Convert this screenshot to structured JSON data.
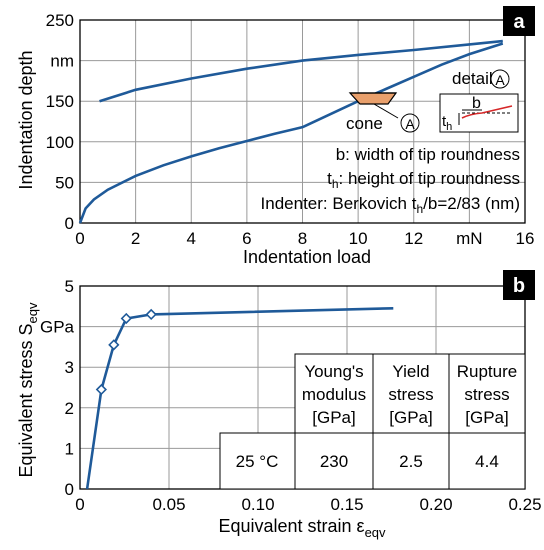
{
  "chart_data": [
    {
      "panel_label": "a",
      "type": "line",
      "xlabel": "Indentation load",
      "ylabel": "Indentation depth",
      "xunit": "mN",
      "yunit": "nm",
      "xlim": [
        0,
        16
      ],
      "ylim": [
        0,
        250
      ],
      "xticks": [
        "0",
        "2",
        "4",
        "6",
        "8",
        "10",
        "12",
        "mN",
        "16"
      ],
      "yticks": [
        "0",
        "50",
        "100",
        "150",
        "nm",
        "250"
      ],
      "grid": true,
      "series": [
        {
          "x": [
            0.0,
            0.2,
            0.5,
            1,
            2,
            3,
            4,
            5,
            6,
            7,
            8,
            9,
            10,
            11,
            12,
            13,
            14,
            15.2
          ],
          "y": [
            0,
            18,
            29,
            41,
            58,
            71,
            82,
            92,
            101,
            110,
            118,
            134,
            150,
            165,
            180,
            195,
            208,
            221
          ]
        },
        {
          "x": [
            0.7,
            2,
            4,
            6,
            8,
            10,
            12,
            14,
            15.2
          ],
          "y": [
            150,
            164,
            178,
            190,
            200,
            207,
            213,
            220,
            224
          ]
        }
      ],
      "inset": {
        "cone_label": "cone",
        "circle_label": "A",
        "detail_label": "detail",
        "detail_circle_label": "A",
        "b_label": "b",
        "th_label": "t",
        "th_sub": "h"
      },
      "annotations": [
        {
          "text": "b: width of tip roundness"
        },
        {
          "pre": "t",
          "sub": "h",
          "post": ": height of tip roundness"
        },
        {
          "pre": "Indenter: Berkovich t",
          "sub": "h",
          "post": "/b=2/83 (nm)"
        }
      ]
    },
    {
      "panel_label": "b",
      "type": "line",
      "xlabel_main": "Equivalent strain ε",
      "xlabel_sub": "eqv",
      "ylabel_main": "Equivalent stress S",
      "ylabel_sub": "eqv",
      "yunit": "GPa",
      "xlim": [
        0,
        0.25
      ],
      "ylim": [
        0,
        5
      ],
      "xticks": [
        "0",
        "0.05",
        "0.10",
        "0.15",
        "0.20",
        "0.25"
      ],
      "yticks": [
        "0",
        "1",
        "2",
        "3",
        "GPa",
        "5"
      ],
      "grid": true,
      "series": [
        {
          "x": [
            0.004,
            0.012,
            0.019,
            0.026,
            0.04,
            0.176
          ],
          "y": [
            0,
            2.45,
            3.55,
            4.2,
            4.3,
            4.45
          ],
          "markers_x": [
            0.012,
            0.019,
            0.026,
            0.04
          ],
          "markers_y": [
            2.45,
            3.55,
            4.2,
            4.3
          ]
        }
      ],
      "table": {
        "headers": [
          [
            "Young's",
            "modulus",
            "[GPa]"
          ],
          [
            "Yield",
            "stress",
            "[GPa]"
          ],
          [
            "Rupture",
            "stress",
            "[GPa]"
          ]
        ],
        "row": [
          "25 °C",
          "230",
          "2.5",
          "4.4"
        ]
      }
    }
  ]
}
